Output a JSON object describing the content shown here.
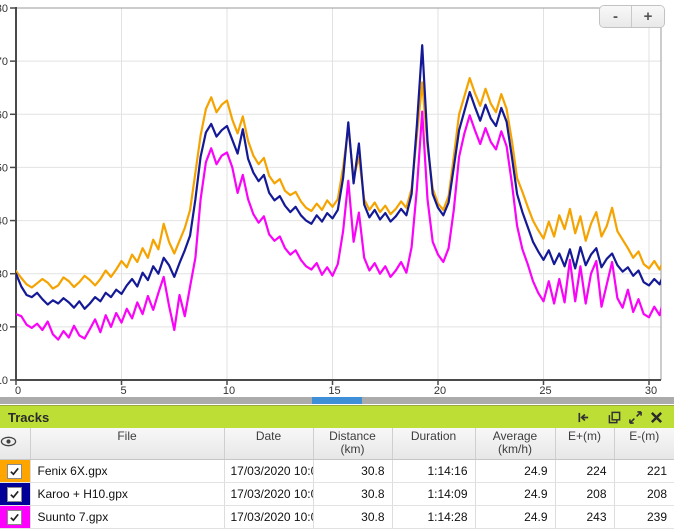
{
  "chart": {
    "controls": {
      "zoom_out": "-",
      "zoom_in": "+"
    }
  },
  "chart_data": {
    "type": "line",
    "title": "",
    "xlabel": "",
    "ylabel": "",
    "xlim": [
      0,
      30.6
    ],
    "ylim": [
      10,
      80
    ],
    "grid": true,
    "legend_position": "none (table below acts as legend)",
    "x_ticks": [
      0,
      5,
      10,
      15,
      20,
      25,
      30
    ],
    "y_ticks": [
      10,
      20,
      30,
      40,
      50,
      60,
      70,
      80
    ],
    "x_start": 0,
    "x_step": 0.25,
    "series": [
      {
        "name": "Fenix 6X.gpx",
        "color": "#f5a300",
        "values": [
          30.5,
          29.2,
          28,
          27.4,
          28.2,
          29,
          28.3,
          27.2,
          27.8,
          29.3,
          28.6,
          27.5,
          28.4,
          29.6,
          28.8,
          27.8,
          29,
          30.6,
          29.4,
          30.8,
          32.4,
          31.2,
          33.6,
          32.2,
          34.8,
          33,
          36.4,
          34.6,
          39.4,
          36,
          33.8,
          36.2,
          38.6,
          42,
          49,
          56,
          61,
          63.2,
          60.4,
          61.8,
          62.6,
          59,
          56.4,
          59.6,
          55,
          52.2,
          50.6,
          51.8,
          48.4,
          47,
          47.8,
          45.6,
          44.8,
          45.4,
          43.6,
          42.4,
          41.8,
          43.2,
          42,
          43.8,
          42.6,
          44,
          50,
          57.5,
          48,
          52,
          44,
          42,
          43.4,
          41.6,
          42.8,
          41.2,
          42.2,
          43.6,
          42.4,
          46,
          56,
          66,
          54,
          46,
          43.2,
          42,
          44.6,
          52,
          60,
          63.4,
          66.8,
          64,
          61.6,
          64.8,
          62,
          60.4,
          63.8,
          61,
          55,
          48,
          45.4,
          42.6,
          40,
          38.2,
          36.6,
          39.8,
          37,
          41,
          38.4,
          42.2,
          37.6,
          40.8,
          36.2,
          39.4,
          41.6,
          37,
          39,
          42.4,
          38,
          36.4,
          34.8,
          33,
          34.2,
          31.8,
          31,
          32.4,
          30.8,
          33.2
        ]
      },
      {
        "name": "Karoo + H10.gpx",
        "color": "#141996",
        "values": [
          30,
          27.6,
          26,
          25.6,
          26.4,
          25.2,
          24.2,
          25,
          24.4,
          25.4,
          24.6,
          23.6,
          24.8,
          23.4,
          24.4,
          25.6,
          24.8,
          26.4,
          25.6,
          27,
          26.2,
          27.8,
          29,
          27.6,
          30.2,
          28.8,
          31.4,
          30,
          33,
          31.6,
          29.4,
          32,
          34.4,
          37.2,
          44,
          52,
          56.6,
          58.2,
          55.8,
          57,
          57.8,
          55.2,
          52.6,
          57.2,
          51.6,
          49,
          47.4,
          48.6,
          45.2,
          43.8,
          44.6,
          42.8,
          41.6,
          42.6,
          41,
          40,
          39.4,
          41,
          39.8,
          41.4,
          40.4,
          42,
          48,
          58.5,
          47,
          54.5,
          43,
          40.6,
          42,
          40.2,
          41.4,
          39.8,
          40.8,
          42.2,
          41,
          45,
          58,
          73,
          55,
          45,
          42.4,
          41,
          43.4,
          50,
          57,
          60.6,
          64.2,
          61.4,
          58.8,
          61.8,
          59.2,
          57.8,
          61.2,
          58.6,
          52,
          45,
          41.6,
          38.8,
          36,
          34.2,
          32.6,
          34.4,
          31.8,
          33.8,
          31.4,
          34.6,
          31,
          35,
          31.6,
          33.6,
          34.8,
          31.2,
          32.8,
          33.8,
          31.6,
          30.4,
          31.2,
          29.6,
          30.6,
          28.4,
          27.8,
          29,
          28,
          30.4
        ]
      },
      {
        "name": "Suunto 7.gpx",
        "color": "#f903f9",
        "values": [
          22.4,
          22,
          20.4,
          19.8,
          20.6,
          19.4,
          21,
          18.6,
          17.6,
          19.2,
          18,
          20.2,
          18.4,
          17.8,
          19.6,
          21.4,
          19,
          22.2,
          20,
          22.6,
          20.8,
          23.4,
          21.6,
          24.6,
          22.4,
          25.8,
          23.2,
          26.4,
          29.4,
          24,
          19.4,
          26,
          22,
          27.6,
          33,
          44,
          51,
          53.6,
          50.6,
          52.2,
          52.8,
          50,
          45.2,
          48.6,
          44,
          41.2,
          39.6,
          40.8,
          37.4,
          36.2,
          37,
          34.8,
          33.6,
          34.4,
          32.6,
          31.4,
          30.8,
          32,
          29.8,
          31.2,
          29.6,
          31.8,
          38,
          47.5,
          36,
          41.5,
          33,
          30.6,
          32,
          30,
          31.4,
          29.4,
          30.6,
          32.2,
          30.2,
          35,
          46,
          60.5,
          44,
          36,
          33.6,
          32.2,
          34.8,
          42,
          52,
          56.4,
          59.8,
          57,
          54.4,
          57.4,
          54.8,
          53.4,
          56.8,
          54,
          47,
          39,
          34.6,
          31.8,
          28.6,
          26.4,
          24.8,
          28.6,
          24.4,
          29,
          24.6,
          32.6,
          24.8,
          31.4,
          24.4,
          30,
          32.4,
          23.8,
          28,
          32.2,
          25.4,
          23.6,
          27,
          22.8,
          25.2,
          22.4,
          21.8,
          23.8,
          22.2,
          26
        ]
      }
    ]
  },
  "panel": {
    "title": "Tracks",
    "icons": [
      "dock-left-icon",
      "restore-window-icon",
      "maximize-icon",
      "close-icon"
    ]
  },
  "table": {
    "visibility_header_icon": "eye-icon",
    "columns": [
      {
        "label": "File",
        "sub": ""
      },
      {
        "label": "Date",
        "sub": ""
      },
      {
        "label": "Distance",
        "sub": "(km)"
      },
      {
        "label": "Duration",
        "sub": ""
      },
      {
        "label": "Average",
        "sub": "(km/h)"
      },
      {
        "label": "E+(m)",
        "sub": ""
      },
      {
        "label": "E-(m)",
        "sub": ""
      }
    ],
    "rows": [
      {
        "color": "#ffa500",
        "checked": true,
        "file": "Fenix 6X.gpx",
        "date": "17/03/2020 10:0",
        "distance": "30.8",
        "duration": "1:14:16",
        "average": "24.9",
        "e_plus": "224",
        "e_minus": "221"
      },
      {
        "color": "#000099",
        "checked": true,
        "file": "Karoo + H10.gpx",
        "date": "17/03/2020 10:0",
        "distance": "30.8",
        "duration": "1:14:09",
        "average": "24.9",
        "e_plus": "208",
        "e_minus": "208"
      },
      {
        "color": "#ff00ff",
        "checked": true,
        "file": "Suunto 7.gpx",
        "date": "17/03/2020 10:0",
        "distance": "30.8",
        "duration": "1:14:28",
        "average": "24.9",
        "e_plus": "243",
        "e_minus": "239"
      }
    ]
  },
  "colors": {
    "panel_header_background": "#bddf35",
    "scrollbar_track": "#ababab",
    "scrollbar_thumb": "#3e8ed8",
    "grid_line": "#e2e2e2",
    "axis_line": "#4a4a4a"
  }
}
